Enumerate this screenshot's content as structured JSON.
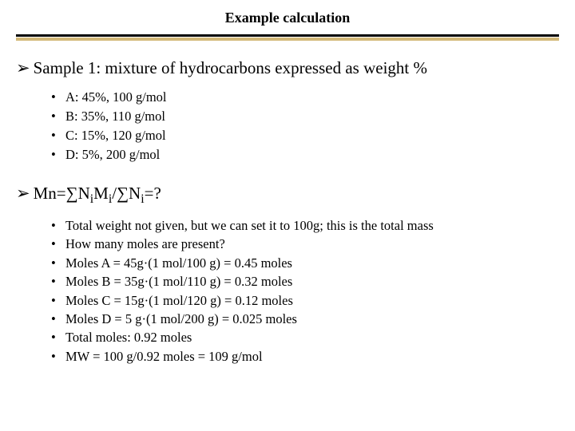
{
  "title": "Example calculation",
  "divider": {
    "dark_color": "#000000",
    "gold_color": "#d3b878"
  },
  "section1": {
    "arrow": "➢",
    "heading": "Sample 1: mixture of hydrocarbons expressed as weight %",
    "items": [
      "A: 45%, 100 g/mol",
      "B: 35%, 110 g/mol",
      "C: 15%, 120 g/mol",
      "D: 5%, 200 g/mol"
    ]
  },
  "section2": {
    "arrow": "➢",
    "heading_html": "Mn=∑N<span class=\"sub\">i</span>M<span class=\"sub\">i</span>/∑N<span class=\"sub\">i</span>=?",
    "items": [
      "Total weight not given, but we can set it to 100g; this is the total mass",
      "How many moles are present?",
      "Moles A = 45g·(1 mol/100 g) = 0.45 moles",
      "Moles B = 35g·(1 mol/110 g) = 0.32 moles",
      "Moles C = 15g·(1 mol/120 g) = 0.12 moles",
      "Moles D = 5 g·(1 mol/200 g) = 0.025 moles",
      "Total moles: 0.92 moles",
      "MW = 100 g/0.92 moles = 109 g/mol"
    ]
  }
}
